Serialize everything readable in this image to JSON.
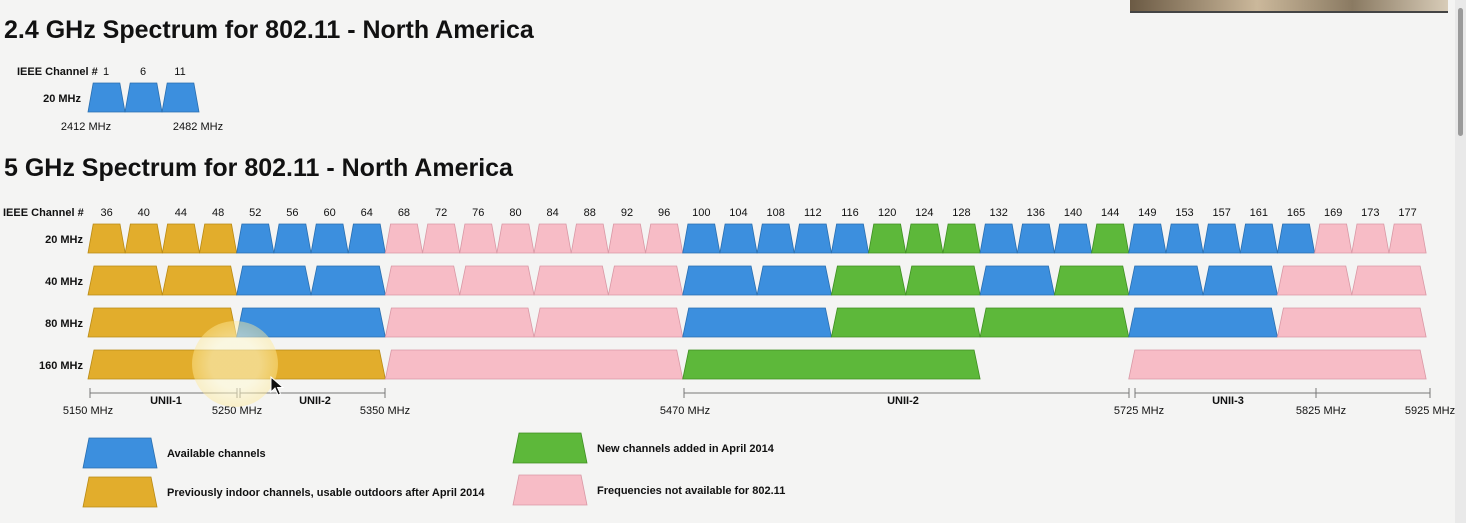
{
  "title_24": "2.4 GHz Spectrum for 802.11 - North America",
  "title_5": "5 GHz Spectrum for 802.11 - North America",
  "colors": {
    "available": "#3c8fde",
    "indoor": "#e2ad2c",
    "new2014": "#5db83a",
    "unavailable": "#f7bcc6"
  },
  "spectrum_24": {
    "channel_label": "IEEE Channel #",
    "row_label": "20 MHz",
    "channels": [
      "1",
      "6",
      "11"
    ],
    "blocks": [
      "available",
      "available",
      "available"
    ],
    "freq_low": "2412 MHz",
    "freq_high": "2482 MHz"
  },
  "spectrum_5": {
    "channel_label": "IEEE Channel #",
    "channels": [
      "36",
      "40",
      "44",
      "48",
      "52",
      "56",
      "60",
      "64",
      "68",
      "72",
      "76",
      "80",
      "84",
      "88",
      "92",
      "96",
      "100",
      "104",
      "108",
      "112",
      "116",
      "120",
      "124",
      "128",
      "132",
      "136",
      "140",
      "144",
      "149",
      "153",
      "157",
      "161",
      "165",
      "169",
      "173",
      "177"
    ],
    "rows": [
      {
        "label": "20 MHz",
        "blocks": [
          [
            "36",
            "indoor"
          ],
          [
            "40",
            "indoor"
          ],
          [
            "44",
            "indoor"
          ],
          [
            "48",
            "indoor"
          ],
          [
            "52",
            "available"
          ],
          [
            "56",
            "available"
          ],
          [
            "60",
            "available"
          ],
          [
            "64",
            "available"
          ],
          [
            "68",
            "unavailable"
          ],
          [
            "72",
            "unavailable"
          ],
          [
            "76",
            "unavailable"
          ],
          [
            "80",
            "unavailable"
          ],
          [
            "84",
            "unavailable"
          ],
          [
            "88",
            "unavailable"
          ],
          [
            "92",
            "unavailable"
          ],
          [
            "96",
            "unavailable"
          ],
          [
            "100",
            "available"
          ],
          [
            "104",
            "available"
          ],
          [
            "108",
            "available"
          ],
          [
            "112",
            "available"
          ],
          [
            "116",
            "available"
          ],
          [
            "120",
            "new2014"
          ],
          [
            "124",
            "new2014"
          ],
          [
            "128",
            "new2014"
          ],
          [
            "132",
            "available"
          ],
          [
            "136",
            "available"
          ],
          [
            "140",
            "available"
          ],
          [
            "144",
            "new2014"
          ],
          [
            "149",
            "available"
          ],
          [
            "153",
            "available"
          ],
          [
            "157",
            "available"
          ],
          [
            "161",
            "available"
          ],
          [
            "165",
            "available"
          ],
          [
            "169",
            "unavailable"
          ],
          [
            "173",
            "unavailable"
          ],
          [
            "177",
            "unavailable"
          ]
        ]
      },
      {
        "label": "40 MHz",
        "blocks": [
          [
            "36-40",
            "indoor"
          ],
          [
            "44-48",
            "indoor"
          ],
          [
            "52-56",
            "available"
          ],
          [
            "60-64",
            "available"
          ],
          [
            "68-72",
            "unavailable"
          ],
          [
            "76-80",
            "unavailable"
          ],
          [
            "84-88",
            "unavailable"
          ],
          [
            "92-96",
            "unavailable"
          ],
          [
            "100-104",
            "available"
          ],
          [
            "108-112",
            "available"
          ],
          [
            "116-120",
            "new2014"
          ],
          [
            "124-128",
            "new2014"
          ],
          [
            "132-136",
            "available"
          ],
          [
            "140-144",
            "new2014"
          ],
          [
            "149-153",
            "available"
          ],
          [
            "157-161",
            "available"
          ],
          [
            "165-169",
            "unavailable"
          ],
          [
            "173-177",
            "unavailable"
          ]
        ]
      },
      {
        "label": "80 MHz",
        "blocks": [
          [
            "36-48",
            "indoor"
          ],
          [
            "52-64",
            "available"
          ],
          [
            "68-80",
            "unavailable"
          ],
          [
            "84-96",
            "unavailable"
          ],
          [
            "100-112",
            "available"
          ],
          [
            "116-128",
            "new2014"
          ],
          [
            "132-144",
            "new2014"
          ],
          [
            "149-161",
            "available"
          ],
          [
            "165-177",
            "unavailable"
          ]
        ]
      },
      {
        "label": "160 MHz",
        "blocks": [
          [
            "36-64",
            "indoor"
          ],
          [
            "68-96",
            "unavailable"
          ],
          [
            "100-128",
            "new2014"
          ],
          [
            "149-177",
            "unavailable"
          ]
        ]
      }
    ],
    "frequencies": [
      "5150 MHz",
      "5250 MHz",
      "5350 MHz",
      "5470 MHz",
      "5725 MHz",
      "5825 MHz",
      "5925 MHz"
    ],
    "bands": [
      {
        "name": "UNII-1",
        "from": "5150 MHz",
        "to": "5250 MHz"
      },
      {
        "name": "UNII-2",
        "from": "5250 MHz",
        "to": "5350 MHz"
      },
      {
        "name": "UNII-2",
        "from": "5470 MHz",
        "to": "5725 MHz"
      },
      {
        "name": "UNII-3",
        "from": "5725 MHz",
        "to": "5825 MHz"
      }
    ]
  },
  "legend": [
    {
      "color": "available",
      "label": "Available channels"
    },
    {
      "color": "indoor",
      "label": "Previously indoor channels, usable outdoors after April 2014"
    },
    {
      "color": "new2014",
      "label": "New channels added in April 2014"
    },
    {
      "color": "unavailable",
      "label": "Frequencies not available for 802.11"
    }
  ]
}
